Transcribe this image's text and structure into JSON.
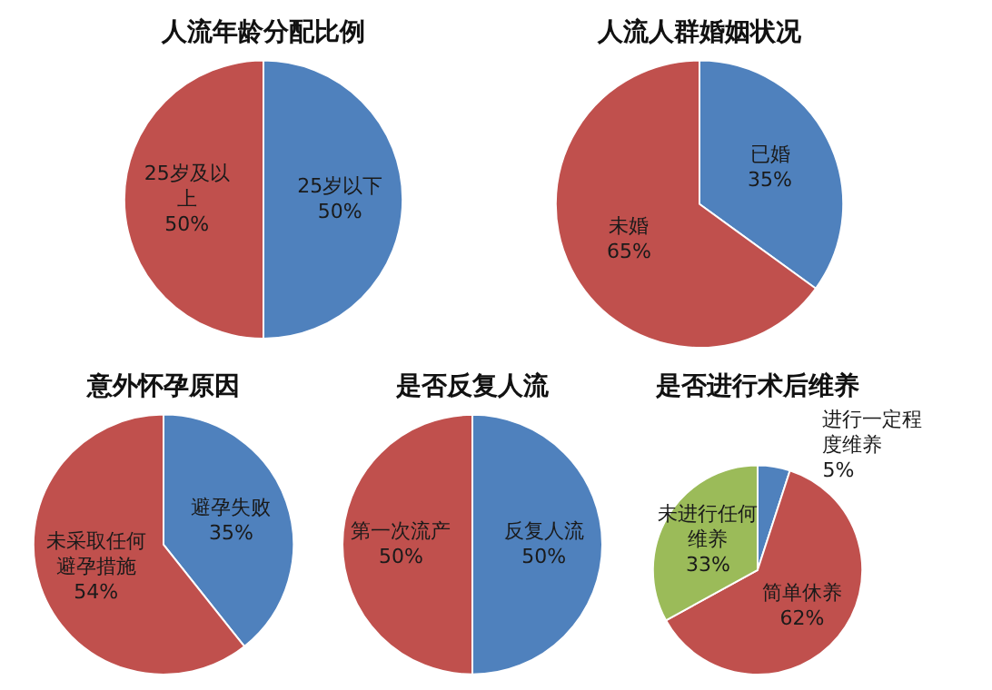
{
  "chart_data": [
    {
      "type": "pie",
      "title": "人流年龄分配比例",
      "categories": [
        "25岁以下",
        "25岁及以上"
      ],
      "values": [
        50,
        50
      ],
      "colors": [
        "#4f81bd",
        "#c0504d"
      ],
      "value_labels": [
        "50%",
        "50%"
      ]
    },
    {
      "type": "pie",
      "title": "人流人群婚姻状况",
      "categories": [
        "已婚",
        "未婚"
      ],
      "values": [
        35,
        65
      ],
      "colors": [
        "#4f81bd",
        "#c0504d"
      ],
      "value_labels": [
        "35%",
        "65%"
      ]
    },
    {
      "type": "pie",
      "title": "意外怀孕原因",
      "categories": [
        "避孕失败",
        "未采取任何避孕措施"
      ],
      "values": [
        35,
        54
      ],
      "colors": [
        "#4f81bd",
        "#c0504d"
      ],
      "value_labels": [
        "35%",
        "54%"
      ]
    },
    {
      "type": "pie",
      "title": "是否反复人流",
      "categories": [
        "反复人流",
        "第一次流产"
      ],
      "values": [
        50,
        50
      ],
      "colors": [
        "#4f81bd",
        "#c0504d"
      ],
      "value_labels": [
        "50%",
        "50%"
      ]
    },
    {
      "type": "pie",
      "title": "是否进行术后维养",
      "categories": [
        "进行一定程度维养",
        "简单休养",
        "未进行任何维养"
      ],
      "values": [
        5,
        62,
        33
      ],
      "colors": [
        "#4f81bd",
        "#c0504d",
        "#9bbb59"
      ],
      "value_labels": [
        "5%",
        "62%",
        "33%"
      ]
    }
  ]
}
